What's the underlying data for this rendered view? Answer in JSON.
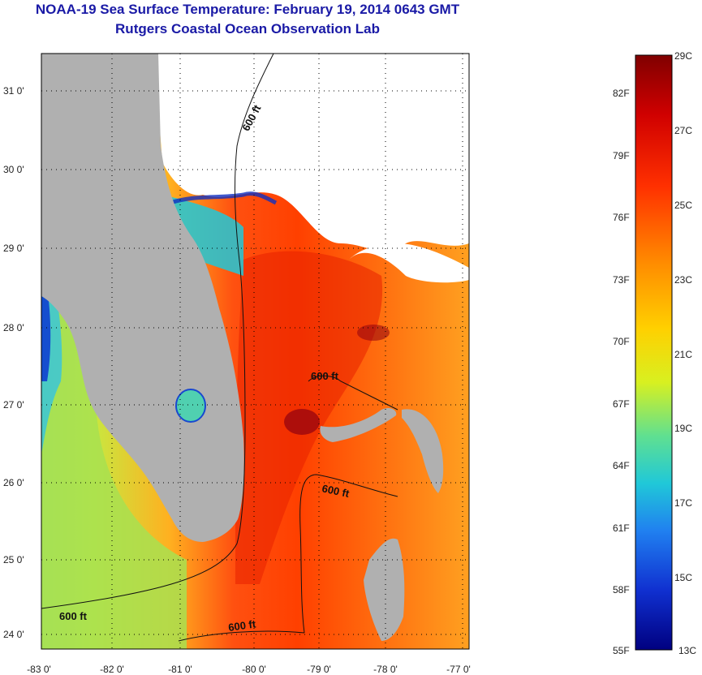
{
  "header": {
    "title": "NOAA-19 Sea Surface Temperature:  February 19, 2014 0643 GMT",
    "subtitle": "Rutgers Coastal Ocean Observation Lab"
  },
  "axes": {
    "lon_ticks": [
      "-83 0'",
      "-82 0'",
      "-81 0'",
      "-80 0'",
      "-79 0'",
      "-78 0'",
      "-77 0'"
    ],
    "lat_ticks": [
      "31 0'",
      "30 0'",
      "29 0'",
      "28 0'",
      "27 0'",
      "26 0'",
      "25 0'",
      "24 0'"
    ]
  },
  "contours": {
    "label": "600 ft"
  },
  "colorbar": {
    "f_labels": [
      "82F",
      "79F",
      "76F",
      "73F",
      "70F",
      "67F",
      "64F",
      "61F",
      "58F",
      "55F"
    ],
    "c_labels": [
      "29C",
      "27C",
      "25C",
      "23C",
      "21C",
      "19C",
      "17C",
      "15C",
      "13C"
    ],
    "colors": [
      "#800000",
      "#d00000",
      "#ff3000",
      "#ff8c00",
      "#ffd000",
      "#d8f020",
      "#60e090",
      "#20c8d8",
      "#2080f0",
      "#1030d0",
      "#000080"
    ]
  },
  "colors": {
    "land": "#b0b0b0",
    "cloud": "#ffffff",
    "title": "#1a1aa6"
  }
}
